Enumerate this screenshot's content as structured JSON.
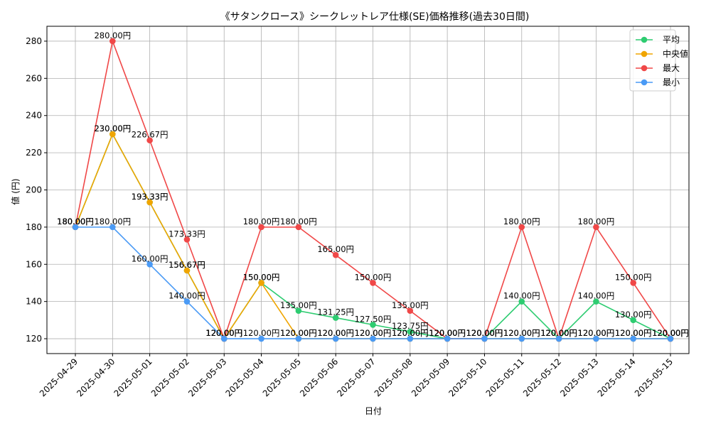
{
  "chart_data": {
    "type": "line",
    "title": "《サタンクロース》シークレットレア仕様(SE)価格推移(過去30日間)",
    "xlabel": "日付",
    "ylabel": "値 (円)",
    "ylim": [
      112,
      288
    ],
    "yticks": [
      120,
      140,
      160,
      180,
      200,
      220,
      240,
      260,
      280
    ],
    "grid": true,
    "legend_position": "top-right",
    "label_suffix": "円",
    "categories": [
      "2025-04-29",
      "2025-04-30",
      "2025-05-01",
      "2025-05-02",
      "2025-05-03",
      "2025-05-04",
      "2025-05-05",
      "2025-05-06",
      "2025-05-07",
      "2025-05-08",
      "2025-05-09",
      "2025-05-10",
      "2025-05-11",
      "2025-05-12",
      "2025-05-13",
      "2025-05-14",
      "2025-05-15"
    ],
    "series": [
      {
        "name": "平均",
        "color": "#2ecc71",
        "values": [
          180,
          230,
          193.33,
          156.67,
          120,
          150,
          135,
          131.25,
          127.5,
          123.75,
          120,
          120,
          140,
          120,
          140,
          130,
          120
        ]
      },
      {
        "name": "中央値",
        "color": "#f0a500",
        "values": [
          180,
          230,
          193.33,
          156.67,
          120,
          150,
          120,
          120,
          120,
          120,
          120,
          120,
          120,
          120,
          120,
          120,
          120
        ]
      },
      {
        "name": "最大",
        "color": "#f04848",
        "values": [
          180,
          280,
          226.67,
          173.33,
          120,
          180,
          180,
          165,
          150,
          135,
          120,
          120,
          180,
          120,
          180,
          150,
          120
        ]
      },
      {
        "name": "最小",
        "color": "#4a9af5",
        "values": [
          180,
          180,
          160,
          140,
          120,
          120,
          120,
          120,
          120,
          120,
          120,
          120,
          120,
          120,
          120,
          120,
          120
        ]
      }
    ]
  }
}
